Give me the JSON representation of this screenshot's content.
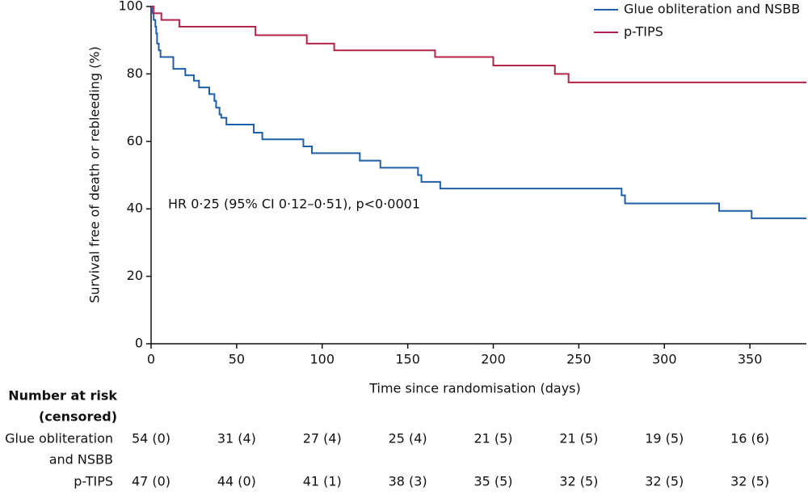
{
  "chart_data": {
    "type": "step",
    "y_label": "Survival free of death or rebleeding (%)",
    "x_label": "Time since randomisation (days)",
    "annotation": "HR 0·25 (95% CI 0·12–0·51), p<0·0001",
    "xlim": [
      0,
      383
    ],
    "ylim": [
      0,
      100
    ],
    "xticks": [
      0,
      50,
      100,
      150,
      200,
      250,
      300,
      350
    ],
    "yticks": [
      0,
      20,
      40,
      60,
      80,
      100
    ],
    "legend": "top-right",
    "series": [
      {
        "name": "Glue obliteration and NSBB",
        "color": "#1f5fa8",
        "x": [
          0,
          0.5,
          1.5,
          2.5,
          3,
          3.5,
          4.5,
          5.5,
          13,
          20,
          25,
          28,
          34,
          37,
          38,
          40,
          41,
          44,
          60,
          65,
          89,
          94,
          122,
          134,
          156,
          158,
          169,
          275,
          277,
          332,
          351,
          383
        ],
        "values": [
          100,
          98,
          96,
          94,
          92,
          89,
          87,
          85,
          81.5,
          79.6,
          78,
          76,
          74,
          72,
          70,
          68,
          67,
          65,
          62.6,
          60.6,
          58.5,
          56.5,
          54.3,
          52.2,
          50,
          48,
          46,
          44,
          41.6,
          39.4,
          37.2,
          37.2
        ]
      },
      {
        "name": "p-TIPS",
        "color": "#b5234a",
        "x": [
          0,
          1.5,
          6,
          16.5,
          61,
          91,
          107,
          166,
          200,
          236,
          244,
          383
        ],
        "values": [
          100,
          98,
          96,
          94,
          91.5,
          89,
          87,
          85,
          82.5,
          80,
          77.5,
          77.5
        ]
      }
    ]
  },
  "risk_table": {
    "title": [
      "Number at risk",
      "(censored)"
    ],
    "rows": [
      {
        "label": [
          "Glue obliteration",
          "and NSBB"
        ],
        "values": [
          "54 (0)",
          "31 (4)",
          "27 (4)",
          "25 (4)",
          "21 (5)",
          "21 (5)",
          "19 (5)",
          "16 (6)"
        ]
      },
      {
        "label": [
          "p-TIPS"
        ],
        "values": [
          "47 (0)",
          "44 (0)",
          "41 (1)",
          "38 (3)",
          "35 (5)",
          "32 (5)",
          "32 (5)",
          "32 (5)"
        ]
      }
    ]
  }
}
